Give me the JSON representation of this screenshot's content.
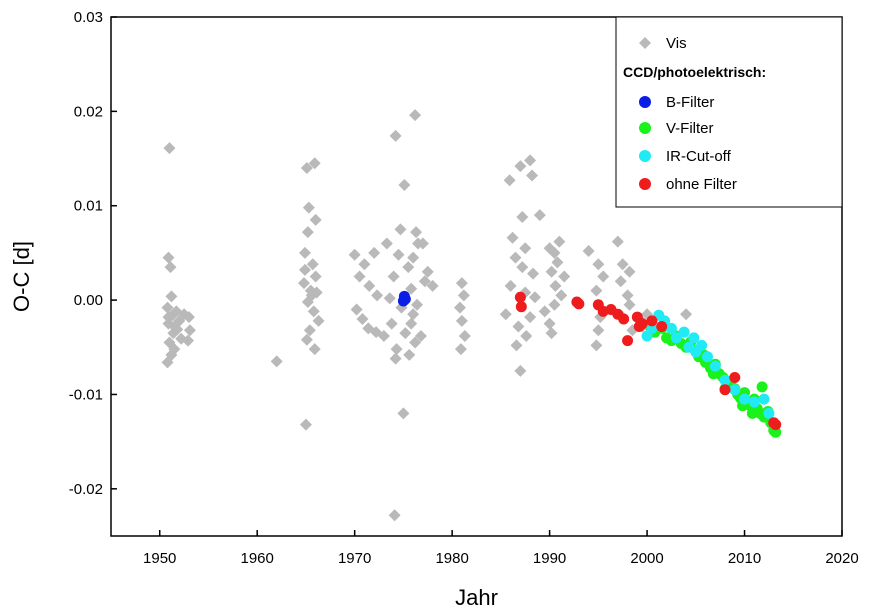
{
  "chart_data": {
    "type": "scatter",
    "xlabel": "Jahr",
    "ylabel": "O-C [d]",
    "xlim": [
      1945,
      2020
    ],
    "ylim": [
      -0.025,
      0.03
    ],
    "xticks": [
      "1950",
      "1960",
      "1970",
      "1980",
      "1990",
      "2000",
      "2010",
      "2020"
    ],
    "yticks": [
      "-0.02",
      "-0.01",
      "0.00",
      "0.01",
      "0.02",
      "0.03"
    ],
    "grid": false,
    "legend": {
      "placement": "top-right",
      "heading": "CCD/photoelektrisch:"
    },
    "series": [
      {
        "name": "Vis",
        "marker": "diamond",
        "color": "#b9b9b9",
        "points": [
          [
            1951.0,
            0.0161
          ],
          [
            1950.9,
            0.0045
          ],
          [
            1951.1,
            0.0035
          ],
          [
            1951.2,
            0.0004
          ],
          [
            1950.8,
            -0.0008
          ],
          [
            1951.3,
            -0.0016
          ],
          [
            1950.9,
            -0.0025
          ],
          [
            1951.4,
            -0.0035
          ],
          [
            1951.0,
            -0.0045
          ],
          [
            1951.5,
            -0.0052
          ],
          [
            1950.8,
            -0.0066
          ],
          [
            1951.7,
            -0.0012
          ],
          [
            1952.0,
            -0.0022
          ],
          [
            1951.8,
            -0.0031
          ],
          [
            1952.2,
            -0.0041
          ],
          [
            1951.5,
            -0.0028
          ],
          [
            1952.5,
            -0.0015
          ],
          [
            1953.0,
            -0.0018
          ],
          [
            1953.1,
            -0.0032
          ],
          [
            1952.9,
            -0.0043
          ],
          [
            1951.2,
            -0.0058
          ],
          [
            1950.9,
            -0.0018
          ],
          [
            1962.0,
            -0.0065
          ],
          [
            1965.0,
            -0.0132
          ],
          [
            1965.1,
            0.014
          ],
          [
            1965.9,
            0.0145
          ],
          [
            1965.3,
            0.0098
          ],
          [
            1966.0,
            0.0085
          ],
          [
            1965.2,
            0.0072
          ],
          [
            1964.9,
            0.005
          ],
          [
            1965.7,
            0.0038
          ],
          [
            1966.0,
            0.0025
          ],
          [
            1964.8,
            0.0018
          ],
          [
            1965.5,
            0.001
          ],
          [
            1966.1,
            0.0008
          ],
          [
            1965.2,
            -0.0002
          ],
          [
            1965.8,
            -0.0012
          ],
          [
            1966.3,
            -0.0022
          ],
          [
            1965.4,
            -0.0032
          ],
          [
            1965.1,
            -0.0042
          ],
          [
            1965.9,
            -0.0052
          ],
          [
            1964.9,
            0.0032
          ],
          [
            1965.6,
            0.0005
          ],
          [
            1970.0,
            0.0048
          ],
          [
            1971.0,
            0.0038
          ],
          [
            1972.0,
            0.005
          ],
          [
            1970.5,
            0.0025
          ],
          [
            1971.5,
            0.0015
          ],
          [
            1972.3,
            0.0005
          ],
          [
            1970.2,
            -0.001
          ],
          [
            1971.4,
            -0.003
          ],
          [
            1972.2,
            -0.0034
          ],
          [
            1973.0,
            -0.0038
          ],
          [
            1970.8,
            -0.002
          ],
          [
            1974.2,
            0.0174
          ],
          [
            1976.2,
            0.0196
          ],
          [
            1975.1,
            0.0122
          ],
          [
            1974.7,
            0.0075
          ],
          [
            1976.3,
            0.0072
          ],
          [
            1973.3,
            0.006
          ],
          [
            1974.5,
            0.0048
          ],
          [
            1975.5,
            0.0035
          ],
          [
            1976.0,
            0.0045
          ],
          [
            1974.0,
            0.0025
          ],
          [
            1975.8,
            0.0012
          ],
          [
            1973.6,
            0.0002
          ],
          [
            1974.8,
            -0.0008
          ],
          [
            1976.0,
            -0.0015
          ],
          [
            1973.8,
            -0.0025
          ],
          [
            1975.2,
            -0.0035
          ],
          [
            1976.2,
            -0.0045
          ],
          [
            1974.3,
            -0.0052
          ],
          [
            1975.6,
            -0.0058
          ],
          [
            1974.2,
            -0.0062
          ],
          [
            1975.0,
            -0.012
          ],
          [
            1974.1,
            -0.0228
          ],
          [
            1976.8,
            -0.0038
          ],
          [
            1977.0,
            0.006
          ],
          [
            1977.2,
            0.002
          ],
          [
            1976.5,
            0.006
          ],
          [
            1977.5,
            0.003
          ],
          [
            1978.0,
            0.0015
          ],
          [
            1976.4,
            -0.0005
          ],
          [
            1975.8,
            -0.0025
          ],
          [
            1981.0,
            0.0018
          ],
          [
            1981.2,
            0.0005
          ],
          [
            1980.8,
            -0.0008
          ],
          [
            1981.0,
            -0.0022
          ],
          [
            1981.3,
            -0.0038
          ],
          [
            1980.9,
            -0.0052
          ],
          [
            1985.9,
            0.0127
          ],
          [
            1987.0,
            0.0142
          ],
          [
            1988.0,
            0.0148
          ],
          [
            1988.2,
            0.0132
          ],
          [
            1987.2,
            0.0088
          ],
          [
            1989.0,
            0.009
          ],
          [
            1986.2,
            0.0066
          ],
          [
            1987.5,
            0.0055
          ],
          [
            1986.5,
            0.0045
          ],
          [
            1987.2,
            0.0035
          ],
          [
            1988.3,
            0.0028
          ],
          [
            1986.0,
            0.0015
          ],
          [
            1987.5,
            0.0008
          ],
          [
            1988.5,
            0.0003
          ],
          [
            1985.5,
            -0.0015
          ],
          [
            1986.8,
            -0.0028
          ],
          [
            1987.6,
            -0.0038
          ],
          [
            1986.6,
            -0.0048
          ],
          [
            1987.0,
            -0.0075
          ],
          [
            1988.0,
            -0.0018
          ],
          [
            1989.5,
            -0.0012
          ],
          [
            1990.0,
            -0.0025
          ],
          [
            1990.2,
            -0.0035
          ],
          [
            1990.0,
            0.0055
          ],
          [
            1991.0,
            0.0062
          ],
          [
            1990.5,
            0.005
          ],
          [
            1990.8,
            0.004
          ],
          [
            1990.2,
            0.003
          ],
          [
            1991.5,
            0.0025
          ],
          [
            1990.6,
            0.0015
          ],
          [
            1991.2,
            0.0005
          ],
          [
            1990.5,
            -0.0005
          ],
          [
            1994.0,
            0.0052
          ],
          [
            1995.0,
            0.0038
          ],
          [
            1995.5,
            0.0025
          ],
          [
            1994.8,
            0.001
          ],
          [
            1995.2,
            -0.0018
          ],
          [
            1995.0,
            -0.0032
          ],
          [
            1994.8,
            -0.0048
          ],
          [
            1997.0,
            0.0062
          ],
          [
            1997.5,
            0.0038
          ],
          [
            1998.2,
            0.003
          ],
          [
            1997.3,
            0.002
          ],
          [
            1998.0,
            0.0005
          ],
          [
            1998.2,
            -0.0005
          ],
          [
            1997.5,
            -0.0018
          ],
          [
            1998.5,
            -0.0032
          ],
          [
            1999.2,
            -0.002
          ],
          [
            1999.5,
            -0.0028
          ],
          [
            2000.0,
            -0.0015
          ],
          [
            2004.0,
            -0.0015
          ]
        ]
      },
      {
        "name": "B-Filter",
        "marker": "circle",
        "color": "#0a1ee6",
        "points": [
          [
            1975.1,
            0.0004
          ],
          [
            1975.2,
            0.0001
          ],
          [
            1975.0,
            -0.0001
          ]
        ]
      },
      {
        "name": "V-Filter",
        "marker": "circle",
        "color": "#1bf11b",
        "points": [
          [
            2000.3,
            -0.0028
          ],
          [
            2000.8,
            -0.0034
          ],
          [
            2001.5,
            -0.003
          ],
          [
            2002.0,
            -0.004
          ],
          [
            2002.5,
            -0.0043
          ],
          [
            2003.0,
            -0.0038
          ],
          [
            2003.5,
            -0.0046
          ],
          [
            2004.0,
            -0.005
          ],
          [
            2004.5,
            -0.0044
          ],
          [
            2005.0,
            -0.0054
          ],
          [
            2005.3,
            -0.006
          ],
          [
            2005.8,
            -0.0058
          ],
          [
            2006.0,
            -0.0066
          ],
          [
            2006.5,
            -0.0072
          ],
          [
            2007.0,
            -0.0068
          ],
          [
            2007.4,
            -0.0078
          ],
          [
            2007.8,
            -0.0082
          ],
          [
            2008.2,
            -0.0086
          ],
          [
            2008.6,
            -0.009
          ],
          [
            2009.0,
            -0.0094
          ],
          [
            2009.3,
            -0.01
          ],
          [
            2009.6,
            -0.0104
          ],
          [
            2010.0,
            -0.0098
          ],
          [
            2010.3,
            -0.0108
          ],
          [
            2010.6,
            -0.0112
          ],
          [
            2011.0,
            -0.0105
          ],
          [
            2011.3,
            -0.0115
          ],
          [
            2011.6,
            -0.012
          ],
          [
            2011.8,
            -0.0092
          ],
          [
            2012.0,
            -0.0124
          ],
          [
            2012.4,
            -0.0118
          ],
          [
            2012.7,
            -0.013
          ],
          [
            2013.0,
            -0.0138
          ],
          [
            2013.2,
            -0.014
          ],
          [
            2006.8,
            -0.0078
          ],
          [
            2008.0,
            -0.0094
          ],
          [
            2009.8,
            -0.0112
          ],
          [
            2010.8,
            -0.012
          ]
        ]
      },
      {
        "name": "IR-Cut-off",
        "marker": "circle",
        "color": "#22eaf4",
        "points": [
          [
            2000.0,
            -0.0038
          ],
          [
            2000.5,
            -0.003
          ],
          [
            2001.2,
            -0.0016
          ],
          [
            2001.8,
            -0.0022
          ],
          [
            2002.5,
            -0.003
          ],
          [
            2003.0,
            -0.004
          ],
          [
            2003.8,
            -0.0034
          ],
          [
            2004.3,
            -0.005
          ],
          [
            2004.8,
            -0.004
          ],
          [
            2005.0,
            -0.0055
          ],
          [
            2005.6,
            -0.0048
          ],
          [
            2006.2,
            -0.006
          ],
          [
            2007.0,
            -0.007
          ],
          [
            2008.0,
            -0.0085
          ],
          [
            2009.0,
            -0.0095
          ],
          [
            2010.0,
            -0.0105
          ],
          [
            2011.0,
            -0.0108
          ],
          [
            2012.0,
            -0.0105
          ],
          [
            2012.5,
            -0.012
          ]
        ]
      },
      {
        "name": "ohne Filter",
        "marker": "circle",
        "color": "#ee1c1c",
        "points": [
          [
            1987.0,
            0.0003
          ],
          [
            1987.1,
            -0.0007
          ],
          [
            1992.8,
            -0.0002
          ],
          [
            1993.0,
            -0.0004
          ],
          [
            1995.0,
            -0.0005
          ],
          [
            1995.5,
            -0.0012
          ],
          [
            1996.3,
            -0.001
          ],
          [
            1997.0,
            -0.0015
          ],
          [
            1997.6,
            -0.002
          ],
          [
            1998.0,
            -0.0043
          ],
          [
            1999.0,
            -0.0018
          ],
          [
            1999.5,
            -0.0025
          ],
          [
            1999.2,
            -0.0028
          ],
          [
            2000.5,
            -0.0022
          ],
          [
            2001.5,
            -0.0028
          ],
          [
            2008.0,
            -0.0095
          ],
          [
            2009.0,
            -0.0082
          ],
          [
            2013.0,
            -0.013
          ],
          [
            2013.2,
            -0.0132
          ]
        ]
      }
    ]
  }
}
